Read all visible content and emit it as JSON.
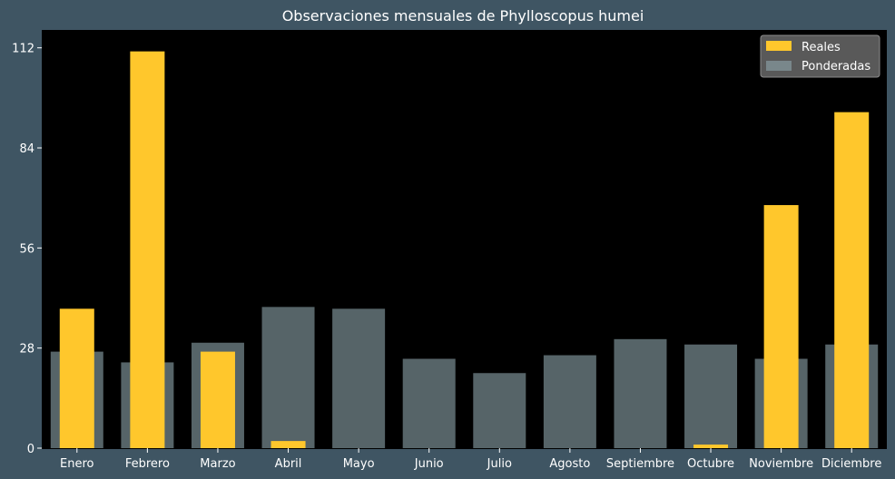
{
  "chart_data": {
    "type": "bar",
    "title": "Observaciones mensuales de Phylloscopus humei",
    "xlabel": "",
    "ylabel": "",
    "categories": [
      "Enero",
      "Febrero",
      "Marzo",
      "Abril",
      "Mayo",
      "Junio",
      "Julio",
      "Agosto",
      "Septiembre",
      "Octubre",
      "Noviembre",
      "Diciembre"
    ],
    "series": [
      {
        "name": "Reales",
        "values": [
          39,
          111,
          27,
          2,
          0,
          0,
          0,
          0,
          0,
          1,
          68,
          94
        ],
        "color": "#ffc72c"
      },
      {
        "name": "Ponderadas",
        "values": [
          27,
          24,
          29.5,
          39.5,
          39,
          25,
          21,
          26,
          30.5,
          29,
          25,
          29
        ],
        "color": "#8fa6ad",
        "opacity": 0.6
      }
    ],
    "ylim": [
      0,
      117
    ],
    "yticks": [
      0,
      28,
      56,
      84,
      112
    ],
    "grid": false,
    "legend_position": "top-right",
    "colors": {
      "background": "#3f5563",
      "plot_background": "#000000",
      "text": "#ffffff"
    }
  }
}
